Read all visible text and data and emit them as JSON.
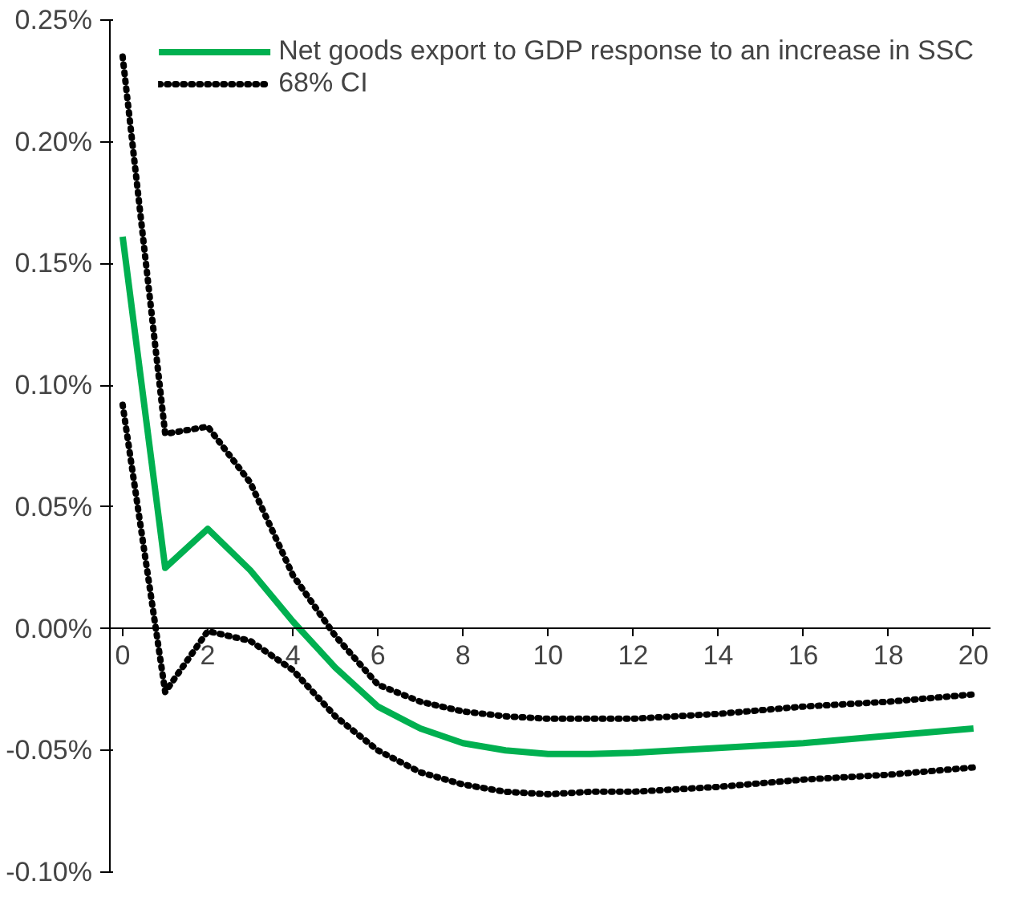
{
  "chart_data": {
    "type": "line",
    "x": [
      0,
      1,
      2,
      3,
      4,
      5,
      6,
      7,
      8,
      9,
      10,
      11,
      12,
      14,
      16,
      18,
      20
    ],
    "series": [
      {
        "name": "Net goods export to GDP response to an increase in SSC",
        "color": "#00b050",
        "line_style": "solid",
        "values": [
          0.161,
          0.025,
          0.041,
          0.024,
          0.003,
          -0.016,
          -0.032,
          -0.041,
          -0.047,
          -0.05,
          -0.0515,
          -0.0515,
          -0.051,
          -0.049,
          -0.047,
          -0.044,
          -0.041
        ]
      },
      {
        "name": "68% CI",
        "color": "#000000",
        "line_style": "dotted",
        "values": [
          0.235,
          0.08,
          0.083,
          0.06,
          0.022,
          -0.003,
          -0.023,
          -0.03,
          -0.034,
          -0.036,
          -0.037,
          -0.037,
          -0.037,
          -0.035,
          -0.032,
          -0.03,
          -0.027
        ]
      },
      {
        "color": "#000000",
        "line_style": "dotted",
        "values": [
          0.092,
          -0.026,
          -0.001,
          -0.005,
          -0.017,
          -0.036,
          -0.05,
          -0.059,
          -0.064,
          -0.067,
          -0.068,
          -0.067,
          -0.067,
          -0.065,
          -0.062,
          -0.06,
          -0.057
        ]
      }
    ],
    "xlim": [
      -0.3,
      20.4
    ],
    "xticks": [
      0,
      2,
      4,
      6,
      8,
      10,
      12,
      14,
      16,
      18,
      20
    ],
    "ylim": [
      -0.1,
      0.25
    ],
    "yticks": [
      {
        "value": -0.1,
        "label": "-0.10%"
      },
      {
        "value": -0.05,
        "label": "-0.05%"
      },
      {
        "value": 0,
        "label": "0.00%"
      },
      {
        "value": 0.05,
        "label": "0.05%"
      },
      {
        "value": 0.1,
        "label": "0.10%"
      },
      {
        "value": 0.15,
        "label": "0.15%"
      },
      {
        "value": 0.2,
        "label": "0.20%"
      },
      {
        "value": 0.25,
        "label": "0.25%"
      }
    ],
    "grid": false,
    "legend": "top right",
    "marker": "none"
  }
}
